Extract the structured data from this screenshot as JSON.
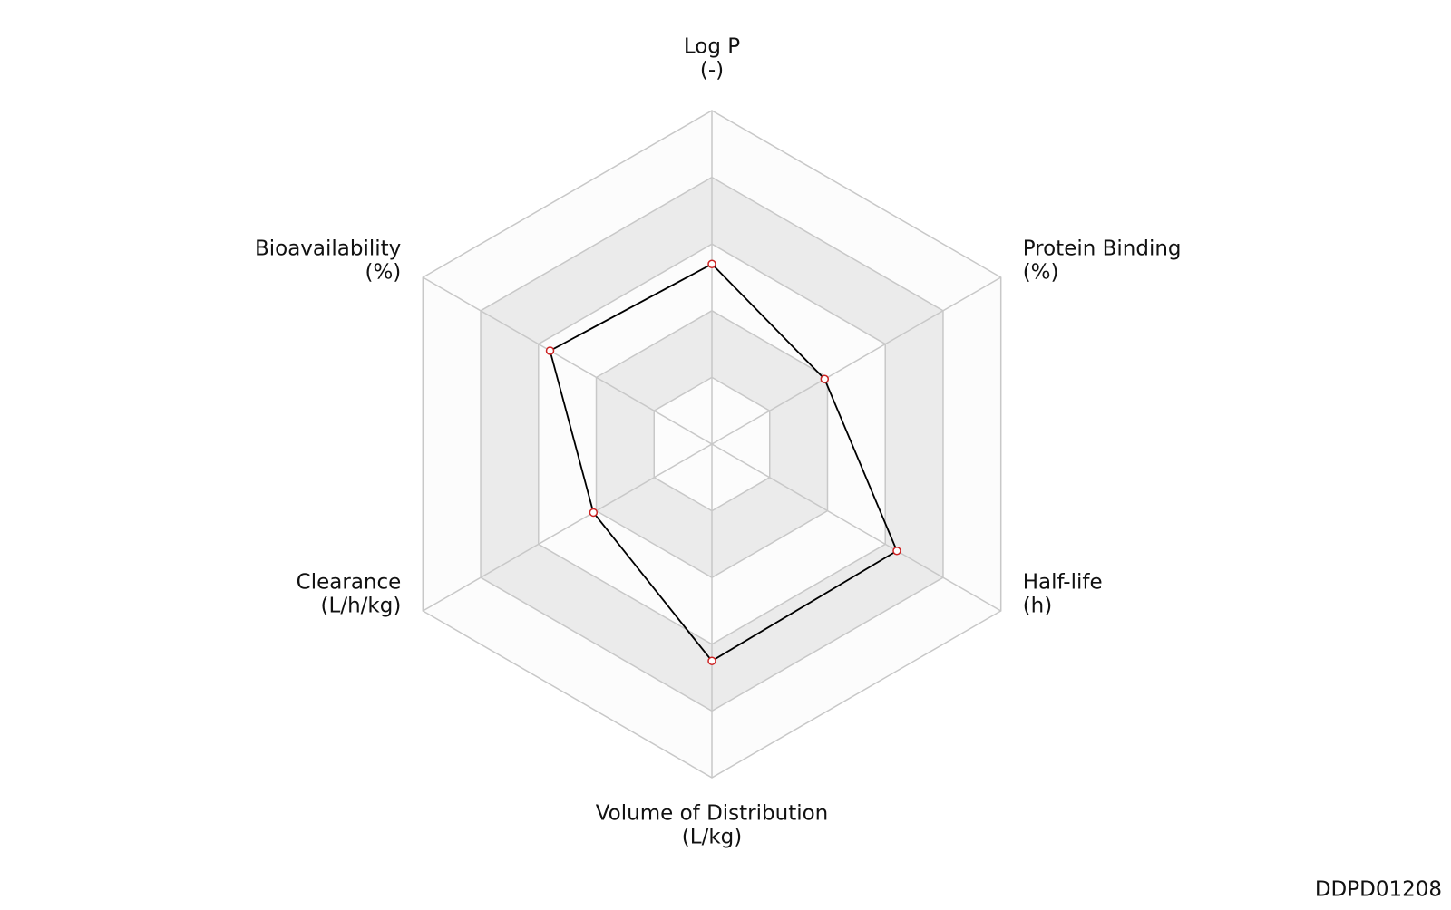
{
  "chart_data": {
    "type": "radar",
    "categories": [
      "Log P",
      "Protein Binding",
      "Half-life",
      "Volume of Distribution",
      "Clearance",
      "Bioavailability"
    ],
    "units": [
      "(-)",
      "(%)",
      "(h)",
      "(L/kg)",
      "(L/h/kg)",
      "(%)"
    ],
    "series": [
      {
        "color": "#000000",
        "marker_color": "#cc2222",
        "values": [
          0.54,
          0.39,
          0.64,
          0.65,
          0.41,
          0.56
        ]
      }
    ],
    "ylim": [
      0,
      1
    ],
    "yticks": [
      0.2,
      0.4,
      0.6,
      0.8,
      1.0
    ],
    "band_colors": [
      "#fcfcfc",
      "#ebebeb"
    ],
    "footer": "DDPD01208"
  }
}
